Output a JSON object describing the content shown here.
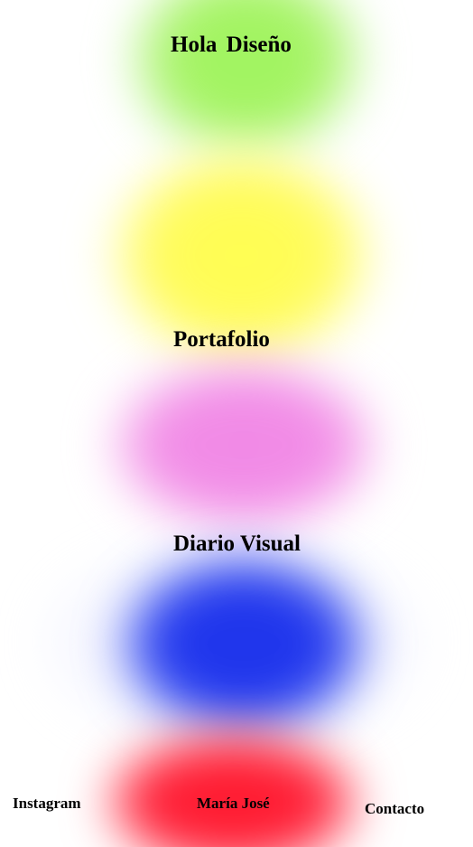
{
  "menu": {
    "hola_label": "Hola  Diseño",
    "portafolio_label": "Portafolio",
    "diario_label": "Diario Visual"
  },
  "footer": {
    "instagram_label": "Instagram",
    "name_label": "María José",
    "contacto_label": "Contacto"
  },
  "colors": {
    "background": "#ffffff",
    "text": "#000000",
    "blob_green": "#a6f464",
    "blob_yellow": "#fffb5c",
    "blob_pink": "#f28ee7",
    "blob_blue": "#2238ee",
    "blob_red": "#ff2038"
  }
}
